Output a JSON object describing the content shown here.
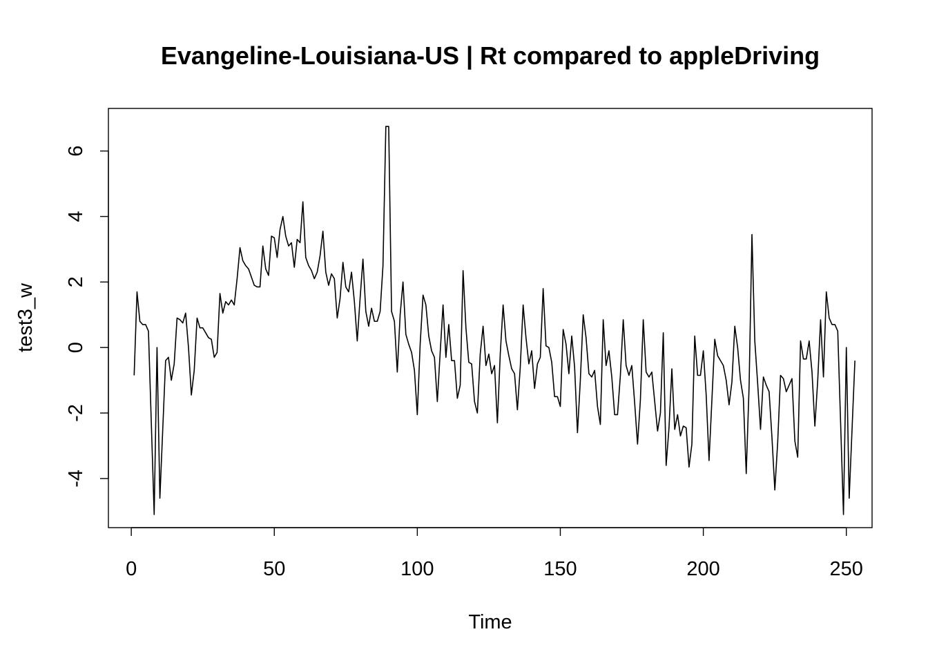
{
  "chart_data": {
    "type": "line",
    "title": "Evangeline-Louisiana-US | Rt compared to appleDriving",
    "xlabel": "Time",
    "ylabel": "test3_w",
    "xlim": [
      -8,
      259
    ],
    "ylim": [
      -5.5,
      7.3
    ],
    "xticks": [
      0,
      50,
      100,
      150,
      200,
      250
    ],
    "yticks": [
      -4,
      -2,
      0,
      2,
      4,
      6
    ],
    "grid": false,
    "legend": "none",
    "line_color": "#000000",
    "series": [
      {
        "x_start": 1,
        "values": [
          -0.85,
          1.7,
          0.8,
          0.7,
          0.7,
          0.5,
          -2.3,
          -5.1,
          0.0,
          -4.6,
          -2.5,
          -0.4,
          -0.3,
          -1.0,
          -0.5,
          0.9,
          0.85,
          0.75,
          1.05,
          0.0,
          -1.45,
          -0.7,
          0.9,
          0.6,
          0.6,
          0.45,
          0.3,
          0.25,
          -0.3,
          -0.15,
          1.65,
          1.05,
          1.4,
          1.3,
          1.45,
          1.3,
          2.1,
          3.05,
          2.65,
          2.5,
          2.4,
          2.15,
          1.9,
          1.85,
          1.85,
          3.1,
          2.4,
          2.2,
          3.4,
          3.35,
          2.75,
          3.6,
          4.0,
          3.4,
          3.1,
          3.2,
          2.45,
          3.3,
          3.2,
          4.45,
          2.75,
          2.5,
          2.35,
          2.1,
          2.3,
          2.8,
          3.55,
          2.3,
          1.9,
          2.25,
          2.1,
          0.9,
          1.5,
          2.6,
          1.85,
          1.7,
          2.3,
          1.4,
          0.2,
          1.5,
          2.7,
          1.1,
          0.65,
          1.2,
          0.8,
          0.8,
          1.1,
          2.5,
          6.75,
          6.75,
          1.1,
          0.8,
          -0.75,
          1.0,
          2.0,
          0.4,
          0.1,
          -0.15,
          -0.7,
          -2.05,
          0.1,
          1.6,
          1.3,
          0.35,
          -0.1,
          -0.3,
          -1.65,
          -0.15,
          1.3,
          -0.3,
          0.7,
          -0.4,
          -0.4,
          -1.55,
          -1.15,
          2.35,
          0.6,
          -0.45,
          -0.5,
          -1.65,
          -2.0,
          -0.2,
          0.65,
          -0.55,
          -0.2,
          -0.8,
          -0.55,
          -2.3,
          -0.2,
          1.3,
          0.2,
          -0.25,
          -0.65,
          -0.8,
          -1.9,
          -0.6,
          1.3,
          0.3,
          -0.5,
          -0.1,
          -1.25,
          -0.5,
          -0.3,
          1.8,
          0.05,
          0.0,
          -0.45,
          -1.5,
          -1.5,
          -1.8,
          0.55,
          0.1,
          -0.8,
          0.35,
          -0.6,
          -2.6,
          -1.0,
          1.0,
          0.3,
          -0.8,
          -0.9,
          -0.7,
          -1.8,
          -2.35,
          0.85,
          -0.55,
          -0.1,
          -0.9,
          -2.05,
          -2.05,
          -0.85,
          0.85,
          -0.55,
          -0.85,
          -0.55,
          -1.7,
          -2.95,
          -1.6,
          0.85,
          -0.75,
          -0.9,
          -0.75,
          -1.65,
          -2.55,
          -2.0,
          0.45,
          -3.6,
          -2.45,
          -0.65,
          -2.5,
          -2.05,
          -2.7,
          -2.4,
          -2.45,
          -3.65,
          -2.95,
          0.35,
          -0.85,
          -0.85,
          -0.1,
          -1.45,
          -3.45,
          -1.6,
          0.25,
          -0.25,
          -0.4,
          -0.55,
          -1.0,
          -1.75,
          -1.05,
          0.65,
          0.0,
          -1.0,
          -1.55,
          -3.85,
          -1.2,
          3.45,
          0.2,
          -1.1,
          -2.5,
          -0.9,
          -1.15,
          -1.35,
          -2.75,
          -4.35,
          -2.9,
          -0.85,
          -0.95,
          -1.35,
          -1.15,
          -0.95,
          -2.85,
          -3.35,
          0.2,
          -0.35,
          -0.35,
          0.2,
          -0.75,
          -2.4,
          -1.0,
          0.85,
          -0.9,
          1.7,
          0.9,
          0.7,
          0.7,
          0.5,
          -2.3,
          -5.1,
          0.0,
          -4.6,
          -2.5,
          -0.4
        ]
      }
    ]
  }
}
